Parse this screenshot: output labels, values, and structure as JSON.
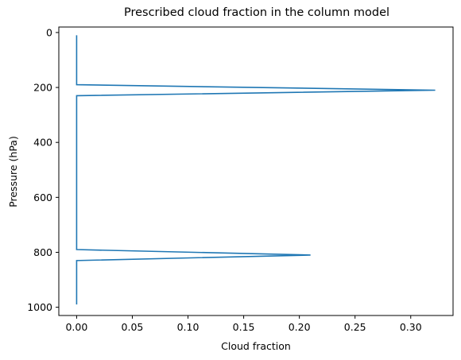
{
  "chart_data": {
    "type": "line",
    "title": "Prescribed cloud fraction in the column model",
    "xlabel": "Cloud fraction",
    "ylabel": "Pressure (hPa)",
    "xlim": [
      -0.016,
      0.338
    ],
    "ylim": [
      1030,
      -20
    ],
    "y_inverted": true,
    "grid": false,
    "xticks": [
      0.0,
      0.05,
      0.1,
      0.15,
      0.2,
      0.25,
      0.3
    ],
    "xtick_labels": [
      "0.00",
      "0.05",
      "0.10",
      "0.15",
      "0.20",
      "0.25",
      "0.30"
    ],
    "yticks": [
      0,
      200,
      400,
      600,
      800,
      1000
    ],
    "ytick_labels": [
      "0",
      "200",
      "400",
      "600",
      "800",
      "1000"
    ],
    "series": [
      {
        "color": "#1f77b4",
        "points": [
          {
            "x": 0.0,
            "y": 10
          },
          {
            "x": 0.0,
            "y": 190
          },
          {
            "x": 0.322,
            "y": 210
          },
          {
            "x": 0.0,
            "y": 230
          },
          {
            "x": 0.0,
            "y": 790
          },
          {
            "x": 0.21,
            "y": 810
          },
          {
            "x": 0.0,
            "y": 830
          },
          {
            "x": 0.0,
            "y": 990
          }
        ]
      }
    ]
  }
}
